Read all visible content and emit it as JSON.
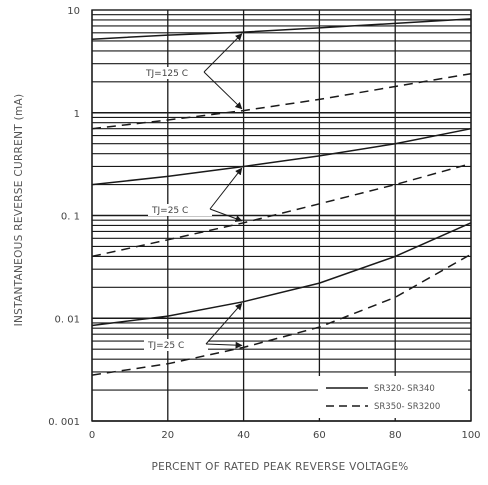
{
  "chart_data": {
    "type": "line",
    "xlabel": "PERCENT OF RATED PEAK REVERSE VOLTAGE%",
    "ylabel": "INSTANTANEOUS REVERSE CURRENT (mA)",
    "x_ticks": [
      "0",
      "20",
      "40",
      "60",
      "80",
      "100"
    ],
    "y_ticks": [
      "0.001",
      "0.01",
      "0.1",
      "1",
      "10"
    ],
    "y_tick_labels": [
      "0. 001",
      "0. 01",
      "0. 1",
      "1",
      "10"
    ],
    "xlim": [
      0,
      100
    ],
    "ylim": [
      0.001,
      10
    ],
    "y_scale": "log",
    "grid": true,
    "legend_position": "bottom-right",
    "legend": [
      {
        "label": "SR320- SR340",
        "style": "solid"
      },
      {
        "label": "SR350- SR3200",
        "style": "dashed"
      }
    ],
    "series": [
      {
        "group": "TJ=125 C",
        "style": "solid",
        "x": [
          0,
          20,
          40,
          60,
          80,
          100
        ],
        "y": [
          5.2,
          5.7,
          6.1,
          6.7,
          7.4,
          8.2
        ]
      },
      {
        "group": "TJ=125 C",
        "style": "dashed",
        "x": [
          0,
          20,
          40,
          60,
          80,
          100
        ],
        "y": [
          0.7,
          0.85,
          1.05,
          1.35,
          1.8,
          2.4
        ]
      },
      {
        "group": "TJ=75 C",
        "style": "solid",
        "x": [
          0,
          20,
          40,
          60,
          80,
          100
        ],
        "y": [
          0.2,
          0.24,
          0.3,
          0.38,
          0.5,
          0.7
        ]
      },
      {
        "group": "TJ=75 C",
        "style": "dashed",
        "x": [
          0,
          20,
          40,
          60,
          80,
          100
        ],
        "y": [
          0.04,
          0.058,
          0.085,
          0.13,
          0.2,
          0.32
        ]
      },
      {
        "group": "TJ=25 C",
        "style": "solid",
        "x": [
          0,
          20,
          40,
          60,
          80,
          100
        ],
        "y": [
          0.0085,
          0.0105,
          0.0145,
          0.022,
          0.04,
          0.085
        ]
      },
      {
        "group": "TJ=25 C",
        "style": "dashed",
        "x": [
          0,
          20,
          40,
          60,
          80,
          100
        ],
        "y": [
          0.0028,
          0.0036,
          0.0052,
          0.0082,
          0.016,
          0.042
        ]
      }
    ],
    "annotations": [
      {
        "text": "TJ=125 C"
      },
      {
        "text": "TJ=25 C"
      },
      {
        "text": "TJ=25 C"
      }
    ],
    "style": {
      "line_color": "#1a1a1a",
      "grid_color": "#1a1a1a",
      "text_color": "#444444"
    }
  }
}
